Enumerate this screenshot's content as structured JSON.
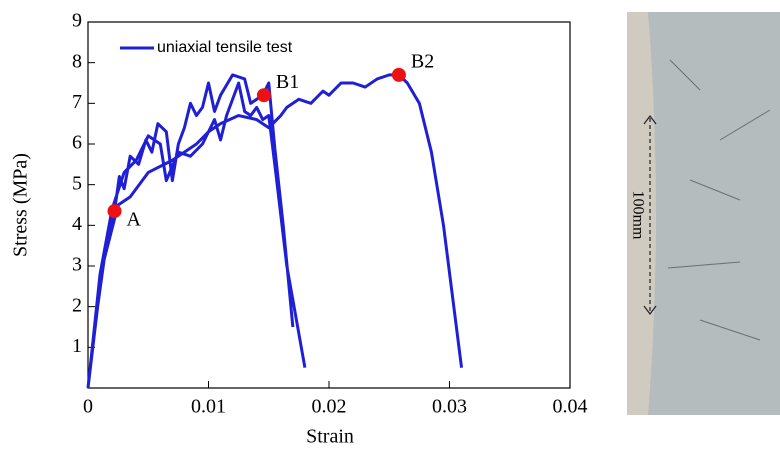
{
  "chart_data": {
    "type": "line",
    "x_label": "Strain",
    "y_label": "Stress (MPa)",
    "xlim": [
      0,
      0.04
    ],
    "xticks": [
      0,
      0.01,
      0.02,
      0.03,
      0.04
    ],
    "ylim": [
      0,
      9
    ],
    "yticks": [
      1,
      2,
      3,
      4,
      5,
      6,
      7,
      8,
      9
    ],
    "series": [
      {
        "name": "uniaxial tensile test",
        "color": "#1f1fd6",
        "x": [
          0,
          0.0008,
          0.0015,
          0.0022,
          0.0026,
          0.003,
          0.0035,
          0.0042,
          0.0048,
          0.0053,
          0.0058,
          0.0065,
          0.007,
          0.0075,
          0.008,
          0.0085,
          0.009,
          0.0095,
          0.01,
          0.0105,
          0.011,
          0.012,
          0.013,
          0.0135,
          0.0145,
          0.015,
          0.0155,
          0.0162,
          0.017,
          null,
          0,
          0.001,
          0.002,
          0.003,
          0.004,
          0.005,
          0.006,
          0.0065,
          0.0075,
          0.0085,
          0.0095,
          0.0105,
          0.011,
          0.0115,
          0.0125,
          0.013,
          0.0135,
          0.014,
          0.0145,
          0.015,
          0.0155,
          0.0165,
          0.018,
          null,
          0,
          0.0012,
          0.0025,
          0.0035,
          0.005,
          0.007,
          0.009,
          0.01,
          0.011,
          0.0125,
          0.014,
          0.015,
          0.016,
          0.0165,
          0.0175,
          0.0185,
          0.0195,
          0.02,
          0.021,
          0.022,
          0.023,
          0.024,
          0.025,
          0.0258,
          0.0265,
          0.0275,
          0.0285,
          0.0295,
          0.031
        ],
        "values": [
          0,
          2.0,
          3.5,
          4.35,
          5.2,
          4.9,
          5.7,
          5.5,
          6.1,
          5.8,
          6.5,
          6.3,
          5.1,
          6.0,
          6.4,
          7.0,
          6.7,
          6.9,
          7.5,
          6.8,
          7.2,
          7.7,
          7.6,
          7.0,
          7.2,
          7.5,
          5.9,
          4.0,
          1.5,
          null,
          0,
          2.8,
          4.4,
          5.3,
          5.6,
          6.2,
          6.0,
          5.1,
          5.8,
          5.7,
          6.0,
          6.6,
          6.1,
          6.7,
          7.5,
          6.8,
          6.7,
          6.9,
          6.6,
          6.7,
          5.5,
          3.0,
          0.5,
          null,
          0,
          3.0,
          4.5,
          4.7,
          5.3,
          5.6,
          6.0,
          6.3,
          6.5,
          6.7,
          6.6,
          6.4,
          6.7,
          6.9,
          7.1,
          7.0,
          7.3,
          7.2,
          7.5,
          7.5,
          7.4,
          7.6,
          7.7,
          7.7,
          7.5,
          7.0,
          5.8,
          4.0,
          0.5
        ]
      },
      {
        "type": "scatter",
        "color": "#ee1111",
        "labels": [
          "A",
          "B1",
          "B2"
        ],
        "x": [
          0.0022,
          0.0146,
          0.0258
        ],
        "values": [
          4.35,
          7.2,
          7.7
        ]
      }
    ],
    "legend": "upper left"
  },
  "photo": {
    "label": "100mm"
  }
}
